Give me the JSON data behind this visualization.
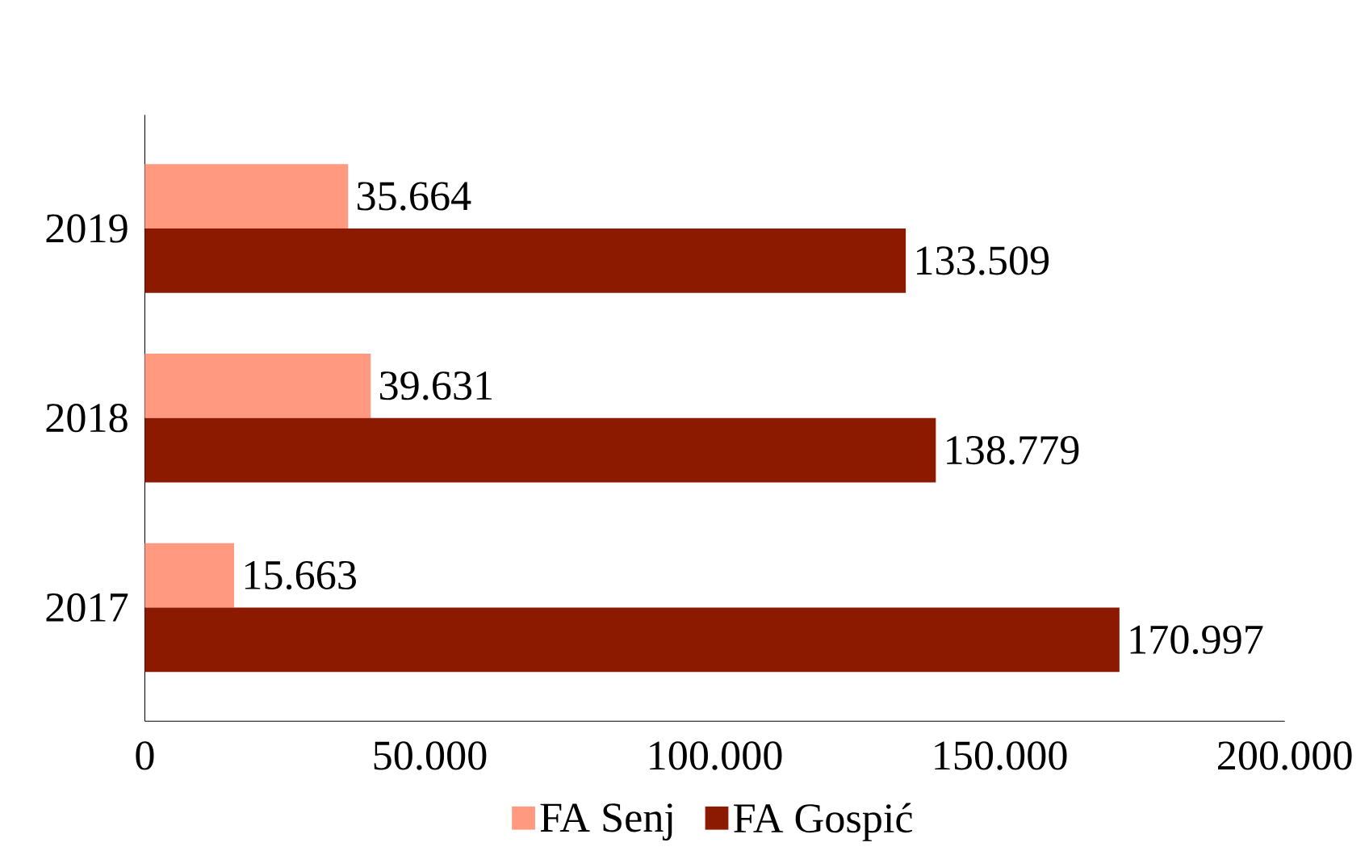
{
  "chart_data": {
    "type": "bar",
    "orientation": "horizontal",
    "categories": [
      "2019",
      "2018",
      "2017"
    ],
    "series": [
      {
        "name": "FA Senj",
        "color": "#ff9980",
        "values": [
          35664,
          39631,
          15663
        ],
        "value_labels": [
          "35.664",
          "39.631",
          "15.663"
        ]
      },
      {
        "name": "FA Gospić",
        "color": "#8b1a00",
        "values": [
          133509,
          138779,
          170997
        ],
        "value_labels": [
          "133.509",
          "138.779",
          "170.997"
        ]
      }
    ],
    "xlim": [
      0,
      200000
    ],
    "xticks": [
      0,
      {
        "value": 50000,
        "label": "50.000"
      },
      {
        "value": 100000,
        "label": "100.000"
      },
      {
        "value": 150000,
        "label": "150.000"
      },
      {
        "value": 200000,
        "label": "200.000"
      }
    ],
    "legend": "bottom",
    "grid": false
  }
}
